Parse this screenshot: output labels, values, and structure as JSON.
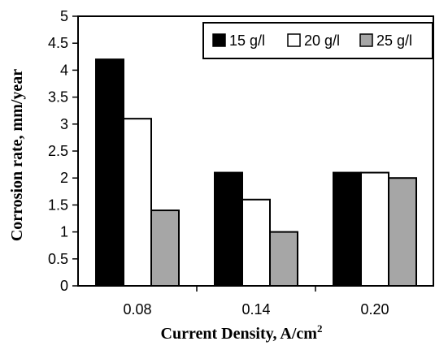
{
  "chart_data": {
    "type": "bar",
    "categories": [
      "0.08",
      "0.14",
      "0.20"
    ],
    "series": [
      {
        "name": "15 g/l",
        "values": [
          4.2,
          2.1,
          2.1
        ],
        "color": "#000000"
      },
      {
        "name": "20 g/l",
        "values": [
          3.1,
          1.6,
          2.1
        ],
        "color": "#ffffff"
      },
      {
        "name": "25 g/l",
        "values": [
          1.4,
          1.0,
          2.0
        ],
        "color": "#a6a6a6"
      }
    ],
    "xlabel": "Current Density, A/cm",
    "xlabel_superscript": "2",
    "ylabel": "Corrosion rate, mm/year",
    "ylim": [
      0,
      5
    ],
    "yticks": [
      "0",
      "0.5",
      "1",
      "1.5",
      "2",
      "2.5",
      "3",
      "3.5",
      "4",
      "4.5",
      "5"
    ],
    "grid": false,
    "legend_position": "top-right"
  }
}
